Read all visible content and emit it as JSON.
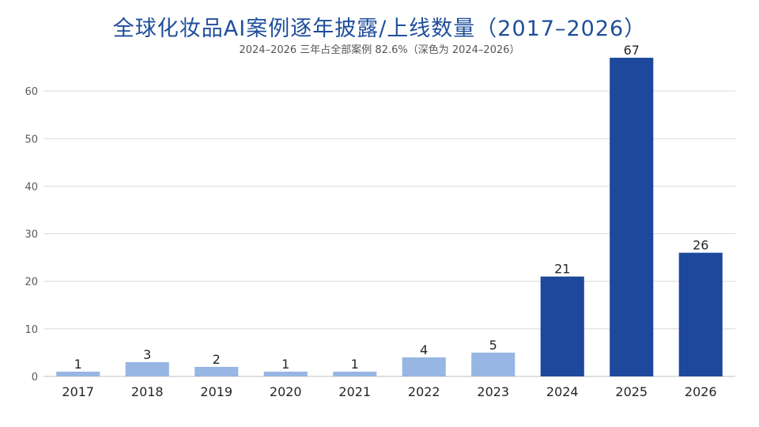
{
  "title": "全球化妆品AI案例逐年披露/上线数量（2017–2026）",
  "subtitle": "2024–2026 三年占全部案例 82.6%（深色为 2024–2026）",
  "colors": {
    "light": "#97b6e3",
    "dark": "#1d489b",
    "title": "#1f4e9c",
    "grid": "#d9d9d9"
  },
  "chart_data": {
    "type": "bar",
    "title": "全球化妆品AI案例逐年披露/上线数量（2017–2026）",
    "subtitle": "2024–2026 三年占全部案例 82.6%（深色为 2024–2026）",
    "categories": [
      "2017",
      "2018",
      "2019",
      "2020",
      "2021",
      "2022",
      "2023",
      "2024",
      "2025",
      "2026"
    ],
    "values": [
      1,
      3,
      2,
      1,
      1,
      4,
      5,
      21,
      67,
      26
    ],
    "highlight": [
      false,
      false,
      false,
      false,
      false,
      false,
      false,
      true,
      true,
      true
    ],
    "data_labels": [
      "1",
      "3",
      "2",
      "1",
      "1",
      "4",
      "5",
      "21",
      "67",
      "26"
    ],
    "yticks": [
      0,
      10,
      20,
      30,
      40,
      50,
      60
    ],
    "ylim": [
      0,
      70
    ],
    "xlabel": "",
    "ylabel": "",
    "grid": true,
    "legend": "none"
  }
}
